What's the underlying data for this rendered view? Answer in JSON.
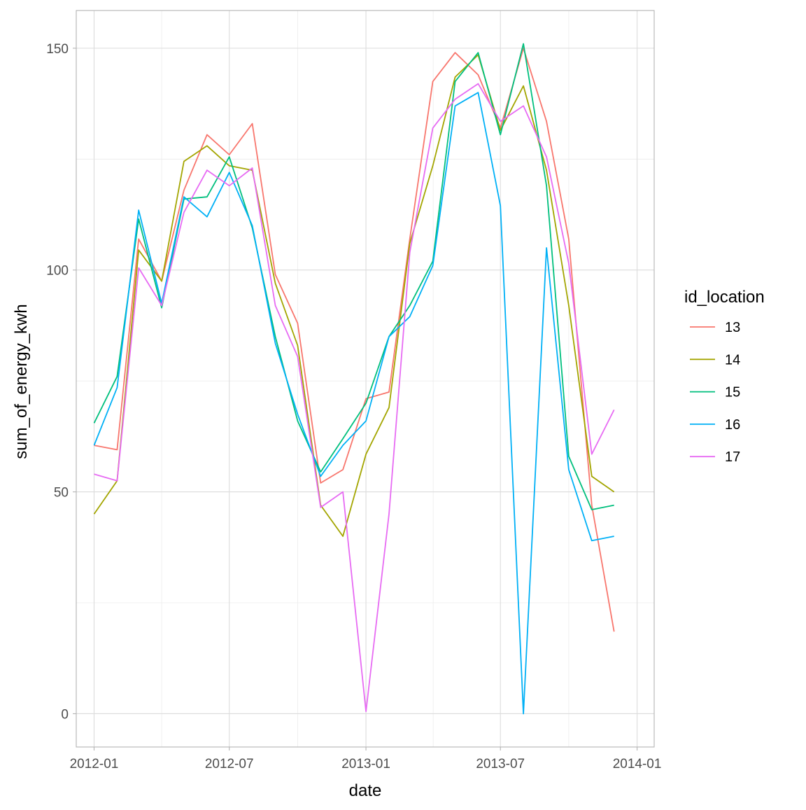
{
  "chart_data": {
    "type": "line",
    "xlabel": "date",
    "ylabel": "sum_of_energy_kwh",
    "x": [
      "2012-01",
      "2012-02",
      "2012-03",
      "2012-04",
      "2012-05",
      "2012-06",
      "2012-07",
      "2012-08",
      "2012-09",
      "2012-10",
      "2012-11",
      "2012-12",
      "2013-01",
      "2013-02",
      "2013-03",
      "2013-04",
      "2013-05",
      "2013-06",
      "2013-07",
      "2013-08",
      "2013-09",
      "2013-10",
      "2013-11",
      "2013-12"
    ],
    "xlim": [
      "2011-12-08",
      "2014-01-24"
    ],
    "ylim": [
      -7.5,
      158.5
    ],
    "x_ticks": [
      {
        "date": "2012-01-01",
        "label": "2012-01"
      },
      {
        "date": "2012-07-01",
        "label": "2012-07"
      },
      {
        "date": "2013-01-01",
        "label": "2013-01"
      },
      {
        "date": "2013-07-01",
        "label": "2013-07"
      },
      {
        "date": "2014-01-01",
        "label": "2014-01"
      }
    ],
    "y_ticks": [
      {
        "value": 0,
        "label": "0"
      },
      {
        "value": 50,
        "label": "50"
      },
      {
        "value": 100,
        "label": "100"
      },
      {
        "value": 150,
        "label": "150"
      }
    ],
    "y_minor_ticks": [
      25,
      75,
      125
    ],
    "grid": true,
    "legend": {
      "title": "id_location",
      "position": "right"
    },
    "series": [
      {
        "name": "13",
        "color": "#F8766D",
        "values": [
          60.5,
          59.5,
          107,
          97.5,
          118,
          130.5,
          126,
          133,
          99,
          88,
          52,
          55,
          71,
          72.5,
          107,
          142.5,
          149,
          144,
          132,
          150,
          133.5,
          107,
          47,
          18.5
        ]
      },
      {
        "name": "14",
        "color": "#A3A500",
        "values": [
          45,
          52.5,
          104.5,
          97.5,
          124.5,
          128,
          123.5,
          122.5,
          97,
          83,
          47,
          40,
          58.5,
          69,
          106,
          123.5,
          143.5,
          148.5,
          131.5,
          141.5,
          122.5,
          92,
          53.5,
          50
        ]
      },
      {
        "name": "15",
        "color": "#00BF7D",
        "values": [
          65.5,
          76,
          111.5,
          91.5,
          116,
          116.5,
          125.5,
          109.5,
          85,
          66,
          54.5,
          62,
          70,
          85,
          92,
          102,
          142.5,
          149,
          130.5,
          151,
          119,
          58,
          46,
          47
        ]
      },
      {
        "name": "16",
        "color": "#00B0F6",
        "values": [
          60.5,
          73.5,
          113.5,
          92.5,
          116.5,
          112,
          122,
          110,
          83.5,
          67.5,
          53.5,
          60.5,
          66,
          85,
          89.5,
          101,
          137,
          140,
          114.5,
          0,
          105,
          55,
          39,
          40
        ]
      },
      {
        "name": "17",
        "color": "#E76BF3",
        "values": [
          54,
          52.5,
          100.5,
          92,
          113,
          122.5,
          119,
          123,
          92,
          80.5,
          46.5,
          50,
          0.5,
          45,
          104,
          132,
          138.5,
          142,
          133.5,
          137,
          125.5,
          101.5,
          58.5,
          68.5
        ]
      }
    ]
  }
}
